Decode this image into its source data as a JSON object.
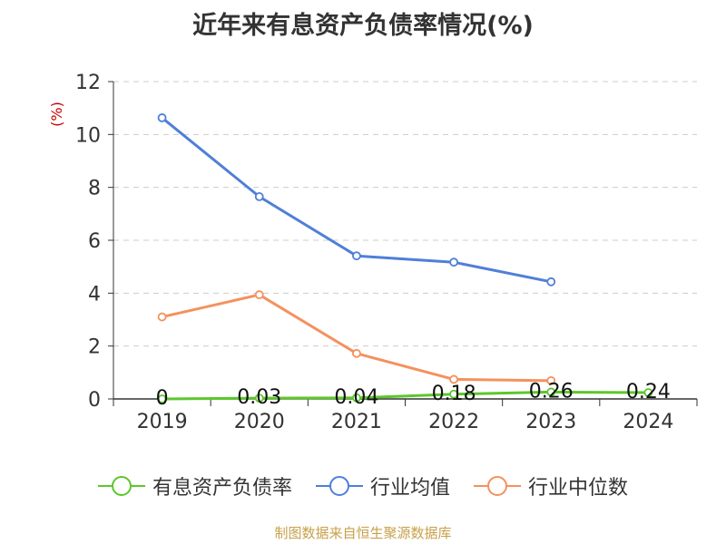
{
  "title": "近年来有息资产负债率情况(%)",
  "source": "制图数据来自恒生聚源数据库",
  "chart_data": {
    "type": "line",
    "title": "近年来有息资产负债率情况(%)",
    "ylabel": "(%)",
    "categories": [
      "2019",
      "2020",
      "2021",
      "2022",
      "2023",
      "2024"
    ],
    "ylim": [
      0,
      12
    ],
    "yticks": [
      0,
      2,
      4,
      6,
      8,
      10,
      12
    ],
    "grid": true,
    "legend_position": "bottom",
    "series": [
      {
        "name": "有息资产负债率",
        "color": "#5cc72c",
        "values": [
          0,
          0.03,
          0.04,
          0.18,
          0.26,
          0.24
        ],
        "labels": [
          "0",
          "0.03",
          "0.04",
          "0.18",
          "0.26",
          "0.24"
        ]
      },
      {
        "name": "行业均值",
        "color": "#4f7fd9",
        "values": [
          10.63,
          7.65,
          5.41,
          5.17,
          4.43,
          null
        ]
      },
      {
        "name": "行业中位数",
        "color": "#f4915e",
        "values": [
          3.1,
          3.94,
          1.72,
          0.74,
          0.69,
          null
        ]
      }
    ]
  }
}
